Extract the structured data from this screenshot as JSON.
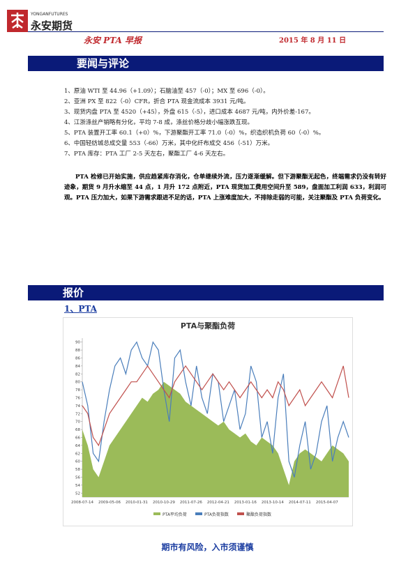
{
  "header": {
    "logo_en": "YONGANFUTURES",
    "logo_cn": "永安期货",
    "title": "永安 PTA 早报",
    "date": "2015 年 8 月 11 日"
  },
  "section1": "要闻与评论",
  "news": [
    "1、原油 WTI 至 44.96（+1.09）；石脑油至 457（-0）；MX 至 696（-0）。",
    "2、亚洲 PX 至 822（-0）CFR，折合 PTA 现金流成本 3931 元/吨。",
    "3、现货内盘 PTA 至 4520（+45），外盘 615（-5），进口成本 4687 元/吨，内外价差-167。",
    "4、江浙涤丝产销略有分化，平均 7-8 成，涤丝价格分歧小幅涨跌互现。",
    "5、PTA 装置开工率 60.1（+0）%，下游聚酯开工率 71.0（-0）%，织造织机负荷 60（-0）%。",
    "6、中国轻纺城总成交量 553（-66）万米，其中化纤布成交 456（-51）万米。",
    "7、PTA 库存：PTA 工厂 2-5 天左右，聚酯工厂 4-6 天左右。"
  ],
  "comment": "PTA 检修已开始实施，供应趋紧库存消化，仓单继续外流，压力逐渐缓解。但下游聚酯无起色，终端需求仍没有转好迹象，期货 9 月升水缩至 44 点，1 月升 172 点附近，PTA 现货加工费用空间升至 589，盘面加工利润 633，利润可观。PTA 压力加大，如果下游需求跟进不足的话，PTA 上涨难度加大，不排除走弱的可能，关注聚酯及 PTA 负荷变化。",
  "section2": "报价",
  "subsection": "1、PTA",
  "chart_data": {
    "type": "line",
    "title": "PTA与聚酯负荷",
    "categories": [
      "2008-07-14",
      null,
      null,
      null,
      null,
      "2009-05-06",
      null,
      null,
      null,
      null,
      "2010-01-31",
      null,
      null,
      null,
      null,
      "2010-10-29",
      null,
      null,
      null,
      null,
      "2011-07-26",
      null,
      null,
      null,
      null,
      "2012-04-21",
      null,
      null,
      null,
      null,
      "2013-01-16",
      null,
      null,
      null,
      null,
      "2013-10-14",
      null,
      null,
      null,
      null,
      "2014-07-11",
      null,
      null,
      null,
      null,
      "2015-04-07",
      null,
      null,
      null,
      null
    ],
    "ylim": [
      51,
      91
    ],
    "yticks": [
      52,
      54,
      56,
      58,
      60,
      62,
      64,
      66,
      68,
      70,
      72,
      74,
      76,
      78,
      80,
      82,
      84,
      86,
      88,
      90
    ],
    "series": [
      {
        "name": "PTA平均负荷",
        "color": "#9bbb59",
        "style": "area",
        "values": [
          68,
          64,
          58,
          56,
          60,
          64,
          66,
          68,
          70,
          72,
          74,
          76,
          75,
          77,
          78,
          80,
          79,
          78,
          77,
          75,
          74,
          73,
          72,
          71,
          70,
          69,
          70,
          68,
          67,
          66,
          67,
          65,
          64,
          66,
          65,
          64,
          62,
          58,
          54,
          60,
          62,
          63,
          62,
          61,
          60,
          62,
          64,
          63,
          62,
          60
        ]
      },
      {
        "name": "PTA负荷指数",
        "color": "#4a7ebb",
        "style": "line",
        "values": [
          80,
          74,
          62,
          60,
          70,
          78,
          84,
          86,
          82,
          88,
          90,
          86,
          84,
          90,
          88,
          78,
          70,
          86,
          88,
          80,
          74,
          84,
          76,
          72,
          82,
          80,
          70,
          74,
          78,
          68,
          72,
          84,
          80,
          66,
          70,
          62,
          76,
          82,
          60,
          56,
          64,
          70,
          58,
          62,
          70,
          74,
          60,
          66,
          70,
          66
        ]
      },
      {
        "name": "聚酯负荷指数",
        "color": "#c0504d",
        "style": "line",
        "values": [
          74,
          72,
          66,
          64,
          68,
          72,
          74,
          76,
          78,
          80,
          80,
          82,
          84,
          82,
          80,
          78,
          76,
          80,
          82,
          84,
          82,
          80,
          78,
          80,
          82,
          80,
          78,
          80,
          78,
          76,
          78,
          80,
          78,
          76,
          78,
          76,
          80,
          78,
          74,
          76,
          78,
          74,
          76,
          78,
          80,
          78,
          76,
          80,
          84,
          76
        ]
      }
    ]
  },
  "footer": "期市有风险，入市须谨慎"
}
